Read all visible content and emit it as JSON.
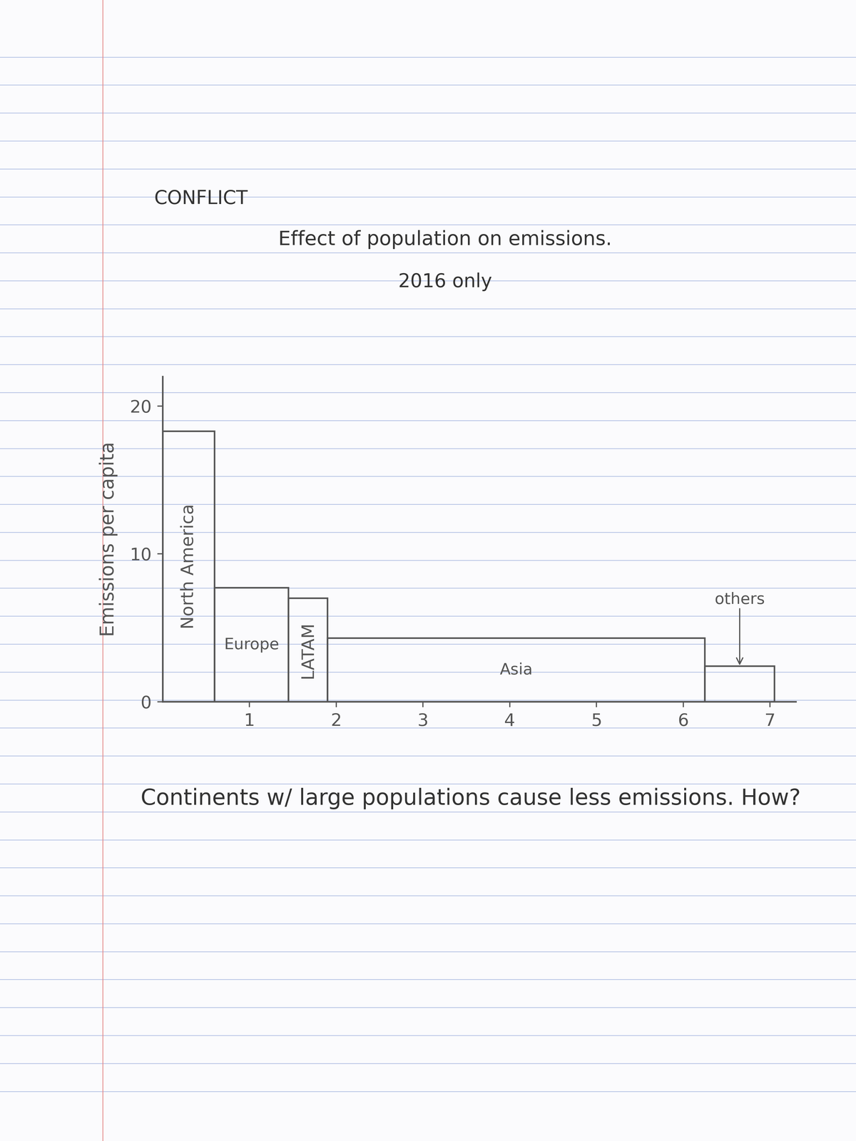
{
  "header": "CONFLICT",
  "chart_data": {
    "type": "bar",
    "title": "Effect of population on emissions.",
    "subtitle": "2016 only",
    "y_label": "Emissions per capita",
    "categories": [
      "North America",
      "Europe",
      "LATAM",
      "Asia",
      "others"
    ],
    "values": [
      18.3,
      7.7,
      7.0,
      4.3,
      2.4
    ],
    "population": [
      0.6,
      0.85,
      0.45,
      4.35,
      0.8
    ],
    "color": "#555555",
    "xlim": [
      0,
      7.3
    ],
    "xticks": [
      1,
      2,
      3,
      4,
      5,
      6,
      7
    ],
    "ylim": [
      0,
      22
    ],
    "yticks": [
      0,
      10,
      20
    ],
    "grid": false
  },
  "note": "Continents w/ large populations cause less emissions. How?"
}
